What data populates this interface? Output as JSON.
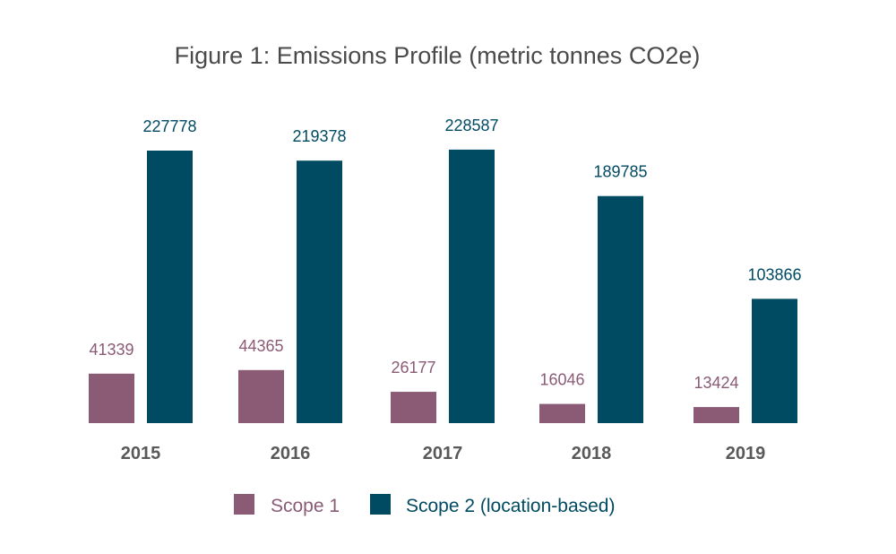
{
  "chart_data": {
    "type": "bar",
    "title": "Figure 1: Emissions Profile (metric tonnes CO2e)",
    "xlabel": "",
    "ylabel": "",
    "ylim": [
      0,
      240000
    ],
    "grid": false,
    "legend_position": "bottom-center",
    "categories": [
      "2015",
      "2016",
      "2017",
      "2018",
      "2019"
    ],
    "series": [
      {
        "name": "Scope 1",
        "color": "#8b5a75",
        "values": [
          41339,
          44365,
          26177,
          16046,
          13424
        ]
      },
      {
        "name": "Scope 2 (location-based)",
        "color": "#004a62",
        "values": [
          227778,
          219378,
          228587,
          189785,
          103866
        ]
      }
    ]
  }
}
